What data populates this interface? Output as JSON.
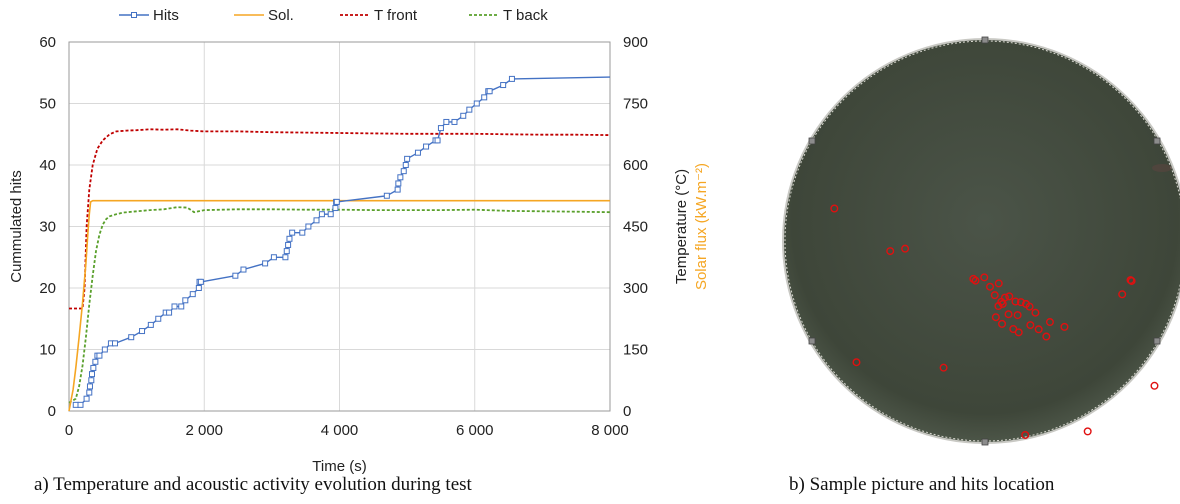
{
  "chart_data": {
    "type": "line",
    "xlabel": "Time (s)",
    "ylabel_left": "Cummulated hits",
    "ylabel_right_1": "Temperature (°C)",
    "ylabel_right_2": "Solar flux (kW.m⁻²)",
    "xlim": [
      0,
      8000
    ],
    "ylim_left": [
      0,
      60
    ],
    "ylim_right": [
      0,
      900
    ],
    "x_ticks": [
      0,
      2000,
      4000,
      6000,
      8000
    ],
    "x_tick_labels": [
      "0",
      "2 000",
      "4 000",
      "6 000",
      "8 000"
    ],
    "y_ticks_left": [
      0,
      10,
      20,
      30,
      40,
      50,
      60
    ],
    "y_ticks_right": [
      0,
      150,
      300,
      450,
      600,
      750,
      900
    ],
    "grid": true,
    "legend_position": "top",
    "colors": {
      "hits": "#4472c4",
      "sol": "#f5a623",
      "t_front": "#c00000",
      "t_back": "#5aa02c",
      "solar_label": "#f5a623"
    },
    "series": [
      {
        "name": "Hits",
        "axis": "left",
        "style": "solid-square-markers",
        "x": [
          100,
          170,
          260,
          300,
          310,
          330,
          340,
          360,
          390,
          420,
          450,
          530,
          620,
          680,
          920,
          1080,
          1210,
          1320,
          1430,
          1480,
          1560,
          1660,
          1720,
          1830,
          1920,
          1930,
          1950,
          2460,
          2580,
          2900,
          3030,
          3200,
          3220,
          3240,
          3260,
          3300,
          3450,
          3540,
          3660,
          3740,
          3870,
          3940,
          3950,
          3960,
          4700,
          4860,
          4870,
          4900,
          4950,
          4980,
          5000,
          5160,
          5280,
          5420,
          5450,
          5500,
          5580,
          5700,
          5830,
          5920,
          6030,
          6140,
          6200,
          6220,
          6420,
          6550,
          8000
        ],
        "y": [
          1,
          1,
          2,
          3,
          4,
          5,
          6,
          7,
          8,
          9,
          9,
          10,
          11,
          11,
          12,
          13,
          14,
          15,
          16,
          16,
          17,
          17,
          18,
          19,
          20,
          21,
          21,
          22,
          23,
          24,
          25,
          25,
          26,
          27,
          28,
          29,
          29,
          30,
          31,
          32,
          32,
          33,
          34,
          34,
          35,
          36,
          37,
          38,
          39,
          40,
          41,
          42,
          43,
          44,
          44,
          46,
          47,
          47,
          48,
          49,
          50,
          51,
          52,
          52,
          53,
          54,
          54.3
        ]
      },
      {
        "name": "Sol.",
        "axis": "left",
        "style": "solid",
        "x": [
          0,
          20,
          60,
          100,
          150,
          200,
          250,
          280,
          300,
          320,
          350,
          1000,
          4000,
          8000
        ],
        "y": [
          0,
          1.2,
          3.5,
          7,
          12,
          17.5,
          24,
          29,
          32,
          34,
          34.2,
          34.2,
          34.2,
          34.2
        ]
      },
      {
        "name": "T front",
        "axis": "right",
        "style": "dashed",
        "x": [
          0,
          150,
          200,
          230,
          260,
          300,
          350,
          420,
          500,
          600,
          700,
          850,
          1000,
          1200,
          1400,
          1600,
          1800,
          2000,
          2500,
          3000,
          3500,
          4000,
          4500,
          5000,
          5500,
          6000,
          6500,
          7000,
          7500,
          8000
        ],
        "y": [
          250,
          250,
          250,
          300,
          450,
          540,
          600,
          640,
          660,
          675,
          682,
          684,
          685,
          687,
          686,
          687,
          684,
          682,
          682,
          680,
          679,
          678,
          677,
          676,
          676,
          676,
          675,
          674,
          674,
          673
        ]
      },
      {
        "name": "T back",
        "axis": "right",
        "style": "dashed",
        "x": [
          0,
          100,
          150,
          200,
          250,
          300,
          350,
          400,
          450,
          500,
          550,
          600,
          700,
          800,
          1000,
          1200,
          1400,
          1600,
          1750,
          1850,
          2000,
          2500,
          3000,
          3500,
          4000,
          4500,
          5000,
          5500,
          6000,
          6500,
          7000,
          7500,
          8000
        ],
        "y": [
          20,
          30,
          60,
          110,
          180,
          260,
          330,
          390,
          430,
          455,
          468,
          475,
          480,
          484,
          487,
          490,
          492,
          497,
          496,
          485,
          490,
          492,
          492,
          491,
          491,
          490,
          490,
          490,
          491,
          488,
          487,
          486,
          485
        ]
      }
    ]
  },
  "captions": {
    "left": "a) Temperature and acoustic activity evolution during test",
    "right": "b) Sample picture and hits location"
  },
  "sample_hits": [
    [
      0.078,
      0.25
    ],
    [
      0.273,
      0.383
    ],
    [
      0.461,
      0.483
    ],
    [
      0.467,
      0.489
    ],
    [
      0.491,
      0.478
    ],
    [
      0.507,
      0.509
    ],
    [
      0.531,
      0.498
    ],
    [
      0.56,
      0.541
    ],
    [
      0.577,
      0.558
    ],
    [
      0.592,
      0.56
    ],
    [
      0.606,
      0.566
    ],
    [
      0.616,
      0.575
    ],
    [
      0.632,
      0.595
    ],
    [
      0.672,
      0.626
    ],
    [
      0.712,
      0.642
    ],
    [
      0.52,
      0.537
    ],
    [
      0.538,
      0.559
    ],
    [
      0.548,
      0.545
    ],
    [
      0.53,
      0.573
    ],
    [
      0.542,
      0.566
    ],
    [
      0.558,
      0.6
    ],
    [
      0.583,
      0.603
    ],
    [
      0.523,
      0.61
    ],
    [
      0.54,
      0.632
    ],
    [
      0.571,
      0.649
    ],
    [
      0.586,
      0.66
    ],
    [
      0.618,
      0.636
    ],
    [
      0.641,
      0.65
    ],
    [
      0.662,
      0.674
    ],
    [
      0.871,
      0.534
    ],
    [
      0.894,
      0.487
    ],
    [
      0.897,
      0.49
    ],
    [
      0.139,
      0.759
    ],
    [
      0.379,
      0.777
    ],
    [
      0.96,
      0.837
    ],
    [
      0.776,
      0.988
    ],
    [
      0.604,
      1.0
    ],
    [
      0.232,
      0.391
    ]
  ]
}
